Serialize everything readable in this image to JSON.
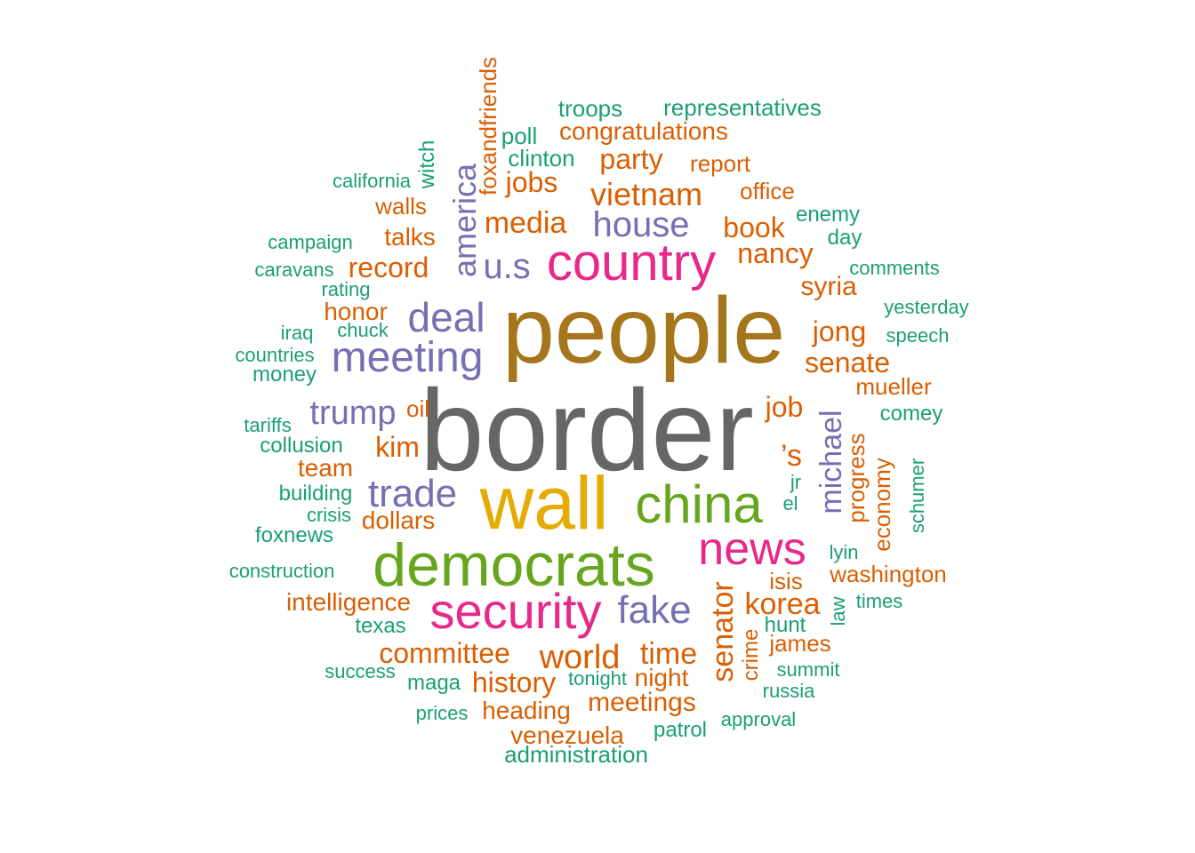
{
  "palette": {
    "gray": "#666666",
    "gold": "#A6761D",
    "yellow": "#E6AB02",
    "green": "#66A61E",
    "pink": "#E7298A",
    "purple": "#7570B3",
    "orange": "#D95F02",
    "teal": "#1B9E77"
  },
  "words": [
    {
      "text": "border",
      "color": "gray"
    },
    {
      "text": "people",
      "color": "gold"
    },
    {
      "text": "wall",
      "color": "yellow"
    },
    {
      "text": "democrats",
      "color": "green"
    },
    {
      "text": "china",
      "color": "green"
    },
    {
      "text": "country",
      "color": "pink"
    },
    {
      "text": "security",
      "color": "pink"
    },
    {
      "text": "news",
      "color": "pink"
    },
    {
      "text": "meeting",
      "color": "purple"
    },
    {
      "text": "deal",
      "color": "purple"
    },
    {
      "text": "trade",
      "color": "purple"
    },
    {
      "text": "fake",
      "color": "purple"
    },
    {
      "text": "trump",
      "color": "purple"
    },
    {
      "text": "house",
      "color": "purple"
    },
    {
      "text": "america",
      "color": "purple"
    },
    {
      "text": "u.s",
      "color": "purple"
    },
    {
      "text": "michael",
      "color": "purple"
    },
    {
      "text": "vietnam",
      "color": "orange"
    },
    {
      "text": "media",
      "color": "orange"
    },
    {
      "text": "world",
      "color": "orange"
    },
    {
      "text": "senator",
      "color": "orange"
    },
    {
      "text": "korea",
      "color": "orange"
    },
    {
      "text": "senate",
      "color": "orange"
    },
    {
      "text": "time",
      "color": "orange"
    },
    {
      "text": "history",
      "color": "orange"
    },
    {
      "text": "committee",
      "color": "orange"
    },
    {
      "text": "nancy",
      "color": "orange"
    },
    {
      "text": "book",
      "color": "orange"
    },
    {
      "text": "jong",
      "color": "orange"
    },
    {
      "text": "kim",
      "color": "orange"
    },
    {
      "text": "record",
      "color": "orange"
    },
    {
      "text": "party",
      "color": "orange"
    },
    {
      "text": "jobs",
      "color": "orange"
    },
    {
      "text": "job",
      "color": "orange"
    },
    {
      "text": "’s",
      "color": "orange"
    },
    {
      "text": "syria",
      "color": "orange"
    },
    {
      "text": "meetings",
      "color": "orange"
    },
    {
      "text": "team",
      "color": "orange"
    },
    {
      "text": "dollars",
      "color": "orange"
    },
    {
      "text": "honor",
      "color": "orange"
    },
    {
      "text": "talks",
      "color": "orange"
    },
    {
      "text": "walls",
      "color": "orange"
    },
    {
      "text": "office",
      "color": "orange"
    },
    {
      "text": "report",
      "color": "orange"
    },
    {
      "text": "congratulations",
      "color": "orange"
    },
    {
      "text": "foxandfriends",
      "color": "orange"
    },
    {
      "text": "progress",
      "color": "orange"
    },
    {
      "text": "economy",
      "color": "orange"
    },
    {
      "text": "mueller",
      "color": "orange"
    },
    {
      "text": "washington",
      "color": "orange"
    },
    {
      "text": "intelligence",
      "color": "orange"
    },
    {
      "text": "heading",
      "color": "orange"
    },
    {
      "text": "venezuela",
      "color": "orange"
    },
    {
      "text": "night",
      "color": "orange"
    },
    {
      "text": "james",
      "color": "orange"
    },
    {
      "text": "isis",
      "color": "orange"
    },
    {
      "text": "crime",
      "color": "orange"
    },
    {
      "text": "oil",
      "color": "orange"
    },
    {
      "text": "troops",
      "color": "teal"
    },
    {
      "text": "representatives",
      "color": "teal"
    },
    {
      "text": "poll",
      "color": "teal"
    },
    {
      "text": "clinton",
      "color": "teal"
    },
    {
      "text": "witch",
      "color": "teal"
    },
    {
      "text": "california",
      "color": "teal"
    },
    {
      "text": "enemy",
      "color": "teal"
    },
    {
      "text": "day",
      "color": "teal"
    },
    {
      "text": "campaign",
      "color": "teal"
    },
    {
      "text": "caravans",
      "color": "teal"
    },
    {
      "text": "comments",
      "color": "teal"
    },
    {
      "text": "rating",
      "color": "teal"
    },
    {
      "text": "yesterday",
      "color": "teal"
    },
    {
      "text": "iraq",
      "color": "teal"
    },
    {
      "text": "chuck",
      "color": "teal"
    },
    {
      "text": "speech",
      "color": "teal"
    },
    {
      "text": "countries",
      "color": "teal"
    },
    {
      "text": "money",
      "color": "teal"
    },
    {
      "text": "comey",
      "color": "teal"
    },
    {
      "text": "tariffs",
      "color": "teal"
    },
    {
      "text": "collusion",
      "color": "teal"
    },
    {
      "text": "schumer",
      "color": "teal"
    },
    {
      "text": "jr",
      "color": "teal"
    },
    {
      "text": "building",
      "color": "teal"
    },
    {
      "text": "el",
      "color": "teal"
    },
    {
      "text": "crisis",
      "color": "teal"
    },
    {
      "text": "foxnews",
      "color": "teal"
    },
    {
      "text": "lyin",
      "color": "teal"
    },
    {
      "text": "construction",
      "color": "teal"
    },
    {
      "text": "law",
      "color": "teal"
    },
    {
      "text": "times",
      "color": "teal"
    },
    {
      "text": "texas",
      "color": "teal"
    },
    {
      "text": "hunt",
      "color": "teal"
    },
    {
      "text": "summit",
      "color": "teal"
    },
    {
      "text": "success",
      "color": "teal"
    },
    {
      "text": "maga",
      "color": "teal"
    },
    {
      "text": "tonight",
      "color": "teal"
    },
    {
      "text": "russia",
      "color": "teal"
    },
    {
      "text": "prices",
      "color": "teal"
    },
    {
      "text": "approval",
      "color": "teal"
    },
    {
      "text": "patrol",
      "color": "teal"
    },
    {
      "text": "administration",
      "color": "teal"
    }
  ]
}
